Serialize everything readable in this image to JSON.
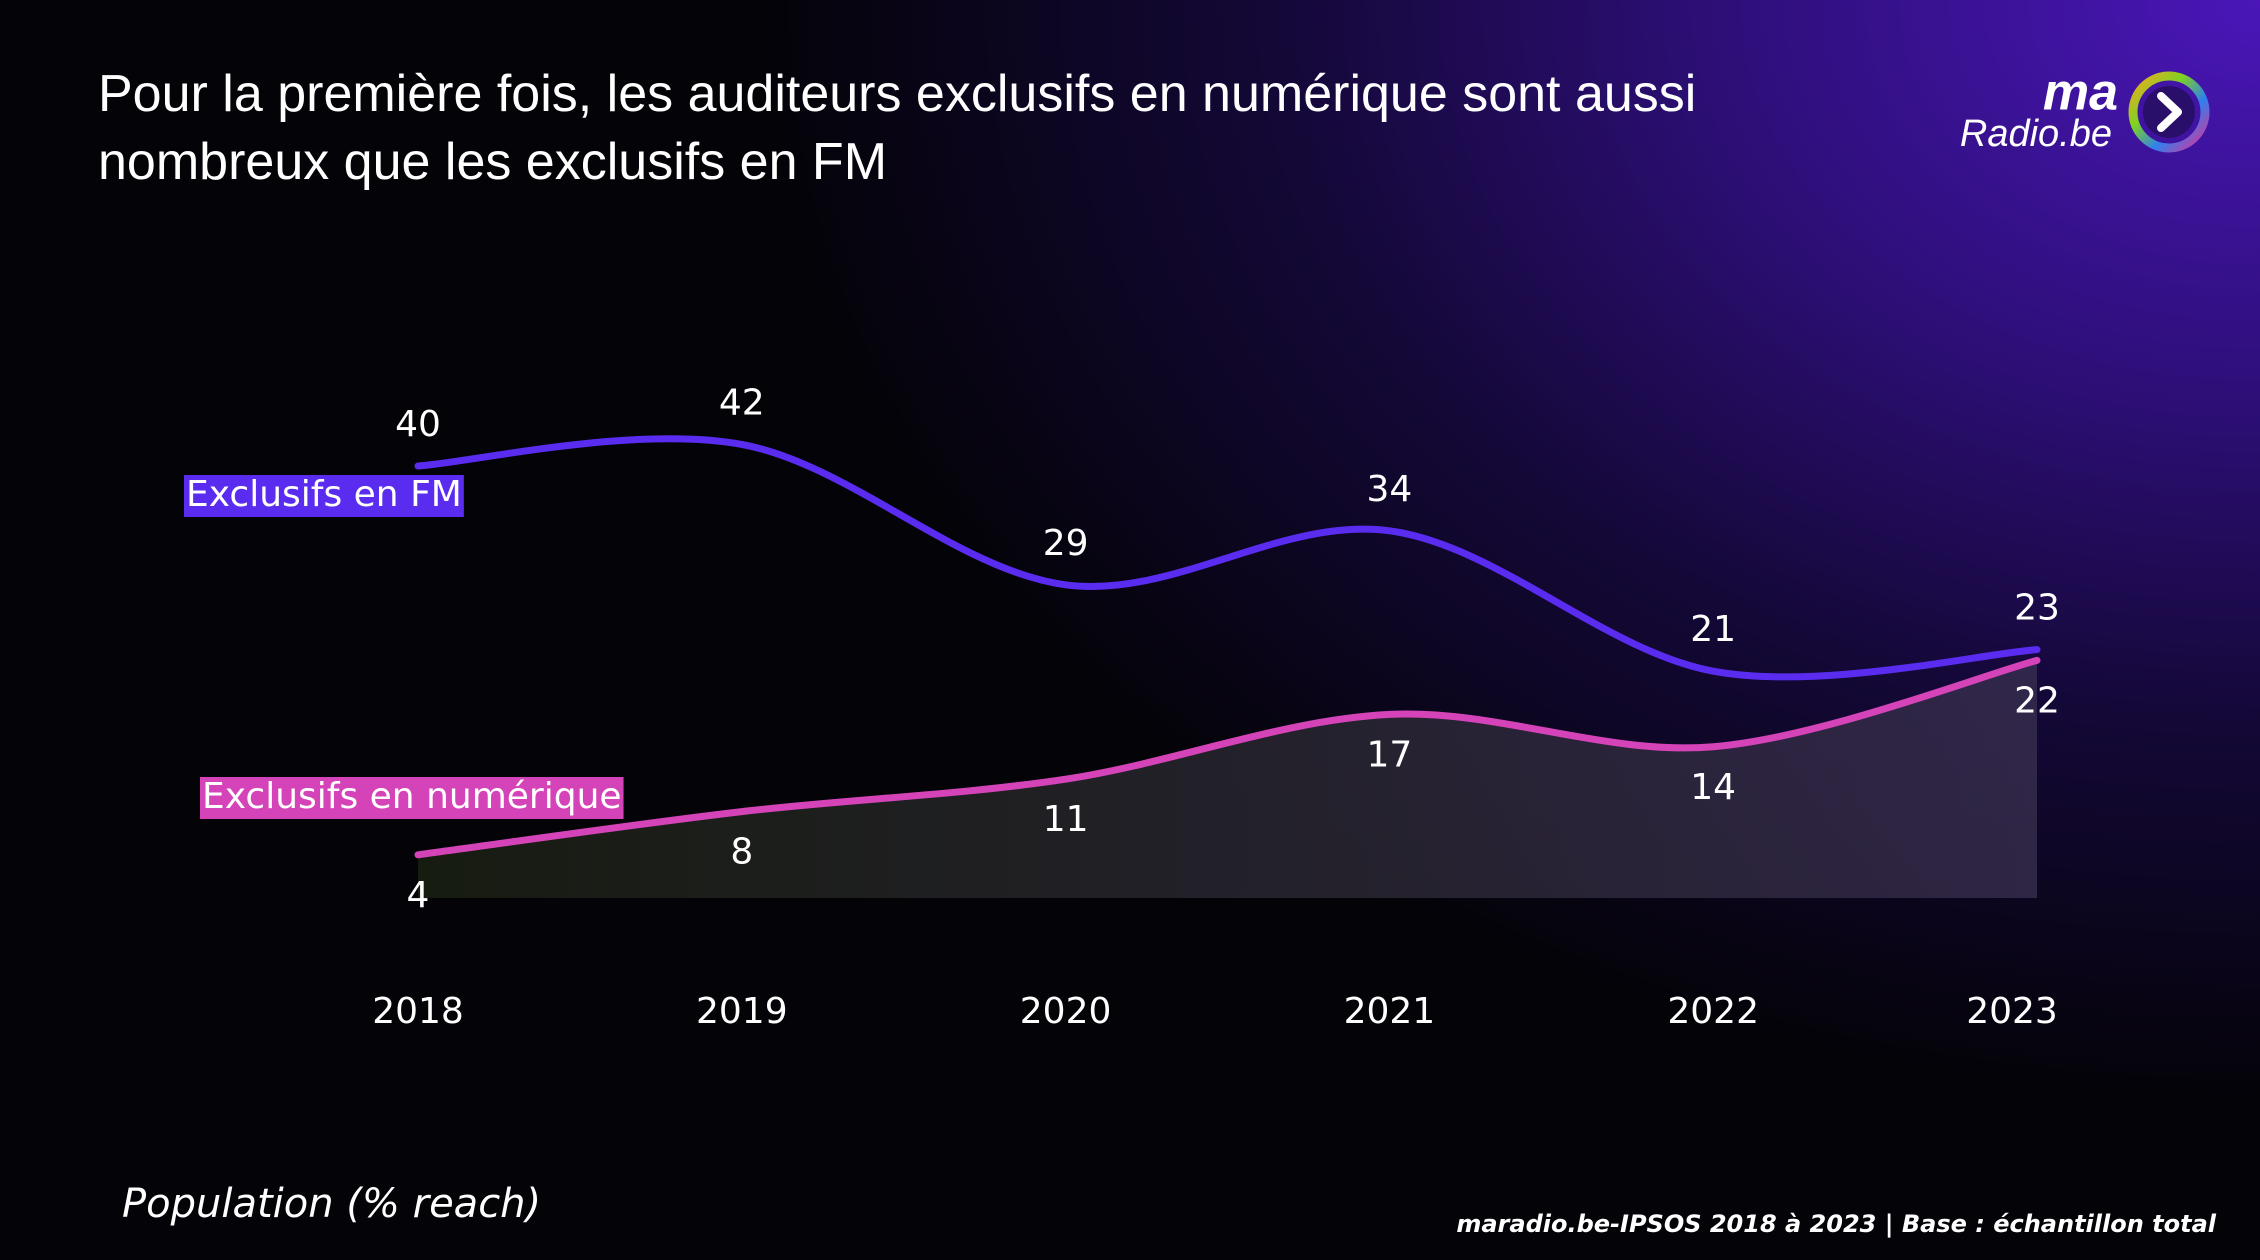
{
  "chart_data": {
    "type": "line",
    "title": "Pour la première fois, les auditeurs exclusifs en numérique sont aussi nombreux que les exclusifs en FM",
    "categories": [
      "2018",
      "2019",
      "2020",
      "2021",
      "2022",
      "2023"
    ],
    "series": [
      {
        "name": "Exclusifs en FM",
        "color": "#5a2cf0",
        "values": [
          40,
          42,
          29,
          34,
          21,
          23
        ]
      },
      {
        "name": "Exclusifs en numérique",
        "color": "#d444b8",
        "values": [
          4,
          8,
          11,
          17,
          14,
          22
        ]
      }
    ],
    "note": "Population (% reach)",
    "source": "maradio.be-IPSOS 2018 à 2023 | Base : échantillon total"
  },
  "logo": {
    "top": "ma",
    "bottom": "Radio.be"
  }
}
